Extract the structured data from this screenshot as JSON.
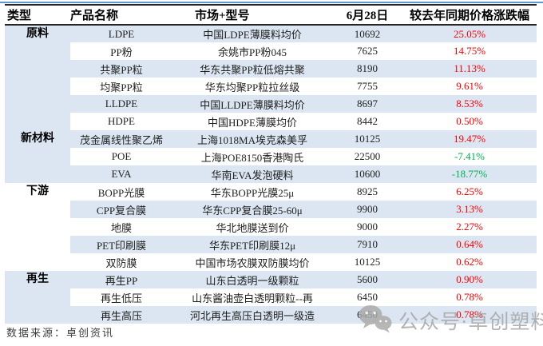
{
  "chart_data": {
    "type": "table",
    "title": "",
    "columns": [
      "类型",
      "产品名称",
      "市场+型号",
      "6月28日",
      "较去年同期价格涨跌幅"
    ],
    "sections": [
      {
        "label": "原料",
        "rowspan": 6,
        "bg": "blue"
      },
      {
        "label": "新材料",
        "rowspan": 3,
        "bg": "blue"
      },
      {
        "label": "下游",
        "rowspan": 5,
        "bg": "white"
      },
      {
        "label": "再生",
        "rowspan": 3,
        "bg": "blue"
      }
    ],
    "rows": [
      {
        "product": "LDPE",
        "market": "中国LDPE薄膜料均价",
        "price": "10692",
        "change": "25.05%"
      },
      {
        "product": "PP粉",
        "market": "余姚市PP粉045",
        "price": "7625",
        "change": "14.75%"
      },
      {
        "product": "共聚PP粒",
        "market": "华东共聚PP粒低熔共聚",
        "price": "8190",
        "change": "11.13%"
      },
      {
        "product": "均聚PP粒",
        "market": "华东均聚PP粒拉丝级",
        "price": "7755",
        "change": "9.61%"
      },
      {
        "product": "LLDPE",
        "market": "中国LLDPE薄膜料均价",
        "price": "8697",
        "change": "8.53%"
      },
      {
        "product": "HDPE",
        "market": "中国HDPE薄膜均价",
        "price": "8442",
        "change": "0.50%"
      },
      {
        "product": "茂金属线性聚乙烯",
        "market": "上海1018MA埃克森美孚",
        "price": "10125",
        "change": "19.47%"
      },
      {
        "product": "POE",
        "market": "上海POE8150香港陶氏",
        "price": "22500",
        "change": "-7.41%"
      },
      {
        "product": "EVA",
        "market": "华南EVA发泡硬料",
        "price": "10600",
        "change": "-18.77%"
      },
      {
        "product": "BOPP光膜",
        "market": "华东BOPP光膜25μ",
        "price": "8925",
        "change": "6.25%"
      },
      {
        "product": "CPP复合膜",
        "market": "华东CPP复合膜25-60μ",
        "price": "9900",
        "change": "3.13%"
      },
      {
        "product": "地膜",
        "market": "华北地膜送到价",
        "price": "9000",
        "change": "2.27%"
      },
      {
        "product": "PET印刷膜",
        "market": "华东PET印刷膜12μ",
        "price": "7910",
        "change": "0.64%"
      },
      {
        "product": "双防膜",
        "market": "中国市场农膜双防膜均价",
        "price": "10125",
        "change": "0.62%"
      },
      {
        "product": "再生PP",
        "market": "山东白透明一级颗粒",
        "price": "5600",
        "change": "0.90%"
      },
      {
        "product": "再生低压",
        "market": "山东酱油壶白透明颗粒--再",
        "price": "6450",
        "change": "0.78%"
      },
      {
        "product": "再生高压",
        "market": "河北再生高压白透明一级造",
        "price": "6450",
        "change": "0.78%"
      }
    ],
    "layout": {
      "zebra_stripes": true,
      "first_row_striped": true
    }
  },
  "footer": {
    "source": "数据来源：卓创资讯"
  },
  "watermark": {
    "icon": "wechat-icon",
    "text": "公众号·卓创塑料"
  },
  "colors": {
    "stripe": "#dbe6f2",
    "positive": "#fe0000",
    "negative": "#00b050",
    "rule": "#5b9bd5",
    "header_border": "#262626",
    "watermark_gray": "#a6a6a6"
  }
}
